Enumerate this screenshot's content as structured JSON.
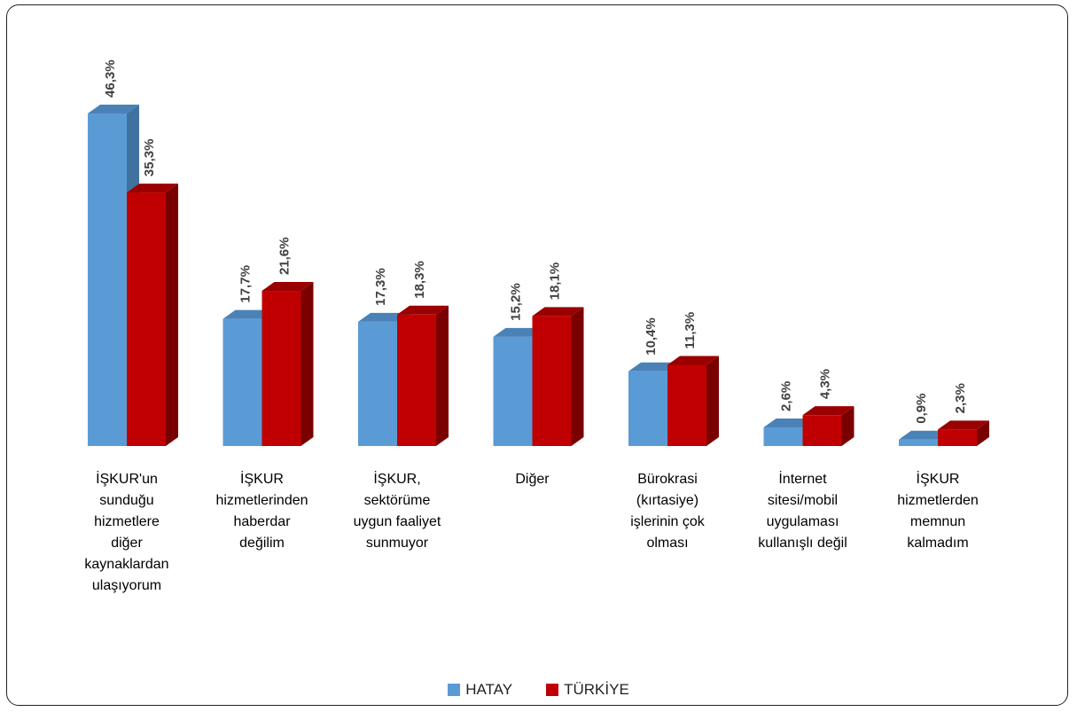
{
  "chart_data": {
    "type": "bar",
    "categories": [
      [
        "İŞKUR'un",
        "sunduğu",
        "hizmetlere",
        "diğer",
        "kaynaklardan",
        "ulaşıyorum"
      ],
      [
        "İŞKUR",
        "hizmetlerinden",
        "haberdar",
        "değilim"
      ],
      [
        "İŞKUR,",
        "sektörüme",
        "uygun faaliyet",
        "sunmuyor"
      ],
      [
        "Diğer"
      ],
      [
        "Bürokrasi",
        "(kırtasiye)",
        "işlerinin çok",
        "olması"
      ],
      [
        "İnternet",
        "sitesi/mobil",
        "uygulaması",
        "kullanışlı değil"
      ],
      [
        "İŞKUR",
        "hizmetlerden",
        "memnun",
        "kalmadım"
      ]
    ],
    "series": [
      {
        "name": "HATAY",
        "values": [
          46.3,
          17.7,
          17.3,
          15.2,
          10.4,
          2.6,
          0.9
        ],
        "labels": [
          "46,3%",
          "17,7%",
          "17,3%",
          "15,2%",
          "10,4%",
          "2,6%",
          "0,9%"
        ],
        "color": "#5b9bd5",
        "side_color": "#41729f",
        "top_color": "#4a82b8"
      },
      {
        "name": "TÜRKİYE",
        "values": [
          35.3,
          21.6,
          18.3,
          18.1,
          11.3,
          4.3,
          2.3
        ],
        "labels": [
          "35,3%",
          "21,6%",
          "18,3%",
          "18,1%",
          "11,3%",
          "4,3%",
          "2,3%"
        ],
        "color": "#c00000",
        "side_color": "#7a0000",
        "top_color": "#9a0000"
      }
    ],
    "ylim": [
      0,
      50
    ],
    "grid": false,
    "legend_position": "bottom"
  }
}
